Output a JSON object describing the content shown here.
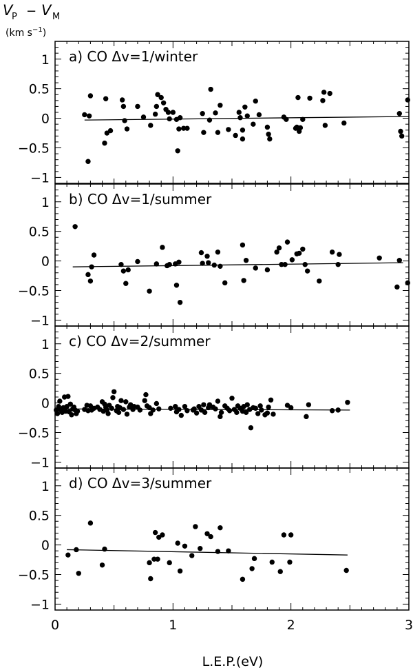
{
  "figure": {
    "ylabel_main": "V",
    "ylabel_sub_p": "P",
    "ylabel_minus": "−",
    "ylabel_sub_m": "M",
    "ylabel_units_pre": "(km s",
    "ylabel_units_exp": "−1",
    "ylabel_units_post": ")",
    "xlabel": "L.E.P.(eV)"
  },
  "chart_data": [
    {
      "type": "scatter",
      "title": "a) CO Δv=1/winter",
      "xlim": [
        0,
        3
      ],
      "ylim": [
        -1.1,
        1.3
      ],
      "xticks": [
        "0",
        "1",
        "2",
        "3"
      ],
      "yticks": [
        "1",
        "0.5",
        "0",
        "−0.5",
        "−1"
      ],
      "fit_line": {
        "x": [
          0.25,
          3.0
        ],
        "y": [
          -0.03,
          0.03
        ]
      },
      "points": [
        [
          0.25,
          0.06
        ],
        [
          0.28,
          -0.73
        ],
        [
          0.29,
          0.04
        ],
        [
          0.3,
          0.38
        ],
        [
          0.42,
          -0.42
        ],
        [
          0.43,
          0.33
        ],
        [
          0.44,
          -0.25
        ],
        [
          0.47,
          -0.21
        ],
        [
          0.57,
          0.31
        ],
        [
          0.58,
          0.2
        ],
        [
          0.59,
          -0.04
        ],
        [
          0.61,
          -0.18
        ],
        [
          0.7,
          0.2
        ],
        [
          0.75,
          0.02
        ],
        [
          0.81,
          -0.12
        ],
        [
          0.85,
          0.07
        ],
        [
          0.86,
          0.2
        ],
        [
          0.87,
          0.4
        ],
        [
          0.9,
          0.35
        ],
        [
          0.92,
          0.26
        ],
        [
          0.94,
          0.15
        ],
        [
          0.96,
          0.1
        ],
        [
          0.97,
          -0.01
        ],
        [
          1.0,
          0.1
        ],
        [
          1.03,
          -0.02
        ],
        [
          1.04,
          -0.55
        ],
        [
          1.05,
          -0.18
        ],
        [
          1.06,
          0.01
        ],
        [
          1.09,
          -0.17
        ],
        [
          1.12,
          -0.17
        ],
        [
          1.25,
          0.08
        ],
        [
          1.26,
          -0.24
        ],
        [
          1.31,
          -0.03
        ],
        [
          1.32,
          0.49
        ],
        [
          1.36,
          0.09
        ],
        [
          1.38,
          -0.24
        ],
        [
          1.4,
          0.22
        ],
        [
          1.47,
          -0.19
        ],
        [
          1.53,
          -0.29
        ],
        [
          1.56,
          0.1
        ],
        [
          1.57,
          0.01
        ],
        [
          1.59,
          -0.2
        ],
        [
          1.59,
          -0.35
        ],
        [
          1.61,
          0.19
        ],
        [
          1.63,
          0.04
        ],
        [
          1.68,
          -0.1
        ],
        [
          1.7,
          0.29
        ],
        [
          1.73,
          0.06
        ],
        [
          1.8,
          -0.15
        ],
        [
          1.81,
          -0.27
        ],
        [
          1.82,
          -0.35
        ],
        [
          1.94,
          0.02
        ],
        [
          1.96,
          -0.02
        ],
        [
          2.04,
          -0.17
        ],
        [
          2.05,
          -0.15
        ],
        [
          2.06,
          0.35
        ],
        [
          2.07,
          -0.22
        ],
        [
          2.08,
          -0.16
        ],
        [
          2.1,
          -0.02
        ],
        [
          2.16,
          0.34
        ],
        [
          2.27,
          0.3
        ],
        [
          2.28,
          0.44
        ],
        [
          2.33,
          0.42
        ],
        [
          2.29,
          -0.12
        ],
        [
          2.45,
          -0.08
        ],
        [
          2.92,
          0.08
        ],
        [
          2.93,
          -0.22
        ],
        [
          2.94,
          -0.3
        ],
        [
          2.99,
          0.31
        ]
      ]
    },
    {
      "type": "scatter",
      "title": "b) CO Δv=1/summer",
      "xlim": [
        0,
        3
      ],
      "ylim": [
        -1.1,
        1.3
      ],
      "xticks": [
        "0",
        "1",
        "2",
        "3"
      ],
      "yticks": [
        "1",
        "0.5",
        "0",
        "−0.5",
        "−1"
      ],
      "fit_line": {
        "x": [
          0.15,
          2.95
        ],
        "y": [
          -0.1,
          -0.03
        ]
      },
      "points": [
        [
          0.17,
          0.58
        ],
        [
          0.28,
          -0.23
        ],
        [
          0.3,
          -0.34
        ],
        [
          0.31,
          -0.1
        ],
        [
          0.33,
          0.1
        ],
        [
          0.56,
          -0.06
        ],
        [
          0.58,
          -0.17
        ],
        [
          0.6,
          -0.38
        ],
        [
          0.62,
          -0.15
        ],
        [
          0.7,
          -0.01
        ],
        [
          0.8,
          -0.51
        ],
        [
          0.86,
          -0.05
        ],
        [
          0.91,
          0.23
        ],
        [
          0.95,
          -0.08
        ],
        [
          0.97,
          -0.06
        ],
        [
          1.02,
          -0.05
        ],
        [
          1.03,
          -0.41
        ],
        [
          1.05,
          -0.02
        ],
        [
          1.06,
          -0.7
        ],
        [
          1.24,
          0.14
        ],
        [
          1.25,
          -0.04
        ],
        [
          1.29,
          0.08
        ],
        [
          1.3,
          -0.03
        ],
        [
          1.35,
          -0.07
        ],
        [
          1.38,
          0.15
        ],
        [
          1.4,
          -0.09
        ],
        [
          1.44,
          -0.37
        ],
        [
          1.59,
          0.27
        ],
        [
          1.6,
          -0.33
        ],
        [
          1.62,
          0.01
        ],
        [
          1.7,
          -0.12
        ],
        [
          1.8,
          -0.15
        ],
        [
          1.88,
          0.15
        ],
        [
          1.9,
          0.22
        ],
        [
          1.92,
          -0.06
        ],
        [
          1.95,
          -0.06
        ],
        [
          1.97,
          0.32
        ],
        [
          2.01,
          0.02
        ],
        [
          2.05,
          0.12
        ],
        [
          2.07,
          0.13
        ],
        [
          2.1,
          0.2
        ],
        [
          2.12,
          -0.06
        ],
        [
          2.14,
          -0.17
        ],
        [
          2.24,
          -0.34
        ],
        [
          2.35,
          0.15
        ],
        [
          2.41,
          0.11
        ],
        [
          2.4,
          -0.06
        ],
        [
          2.75,
          0.05
        ],
        [
          2.9,
          -0.44
        ],
        [
          2.92,
          0.01
        ],
        [
          2.99,
          -0.37
        ]
      ]
    },
    {
      "type": "scatter",
      "title": "c) CO Δv=2/summer",
      "xlim": [
        0,
        3
      ],
      "ylim": [
        -1.1,
        1.3
      ],
      "xticks": [
        "0",
        "1",
        "2",
        "3"
      ],
      "yticks": [
        "1",
        "0.5",
        "0",
        "−0.5",
        "−1"
      ],
      "fit_line": {
        "x": [
          0.0,
          2.5
        ],
        "y": [
          -0.1,
          -0.12
        ]
      },
      "points": [
        [
          0.01,
          -0.12
        ],
        [
          0.02,
          -0.18
        ],
        [
          0.03,
          -0.06
        ],
        [
          0.04,
          0.03
        ],
        [
          0.05,
          -0.12
        ],
        [
          0.06,
          -0.16
        ],
        [
          0.07,
          -0.08
        ],
        [
          0.08,
          0.1
        ],
        [
          0.09,
          -0.14
        ],
        [
          0.1,
          -0.06
        ],
        [
          0.11,
          0.11
        ],
        [
          0.12,
          -0.15
        ],
        [
          0.13,
          -0.02
        ],
        [
          0.14,
          -0.2
        ],
        [
          0.15,
          -0.1
        ],
        [
          0.16,
          -0.07
        ],
        [
          0.17,
          -0.12
        ],
        [
          0.18,
          -0.18
        ],
        [
          0.19,
          -0.14
        ],
        [
          0.25,
          -0.11
        ],
        [
          0.27,
          -0.04
        ],
        [
          0.28,
          -0.13
        ],
        [
          0.3,
          -0.05
        ],
        [
          0.31,
          -0.12
        ],
        [
          0.33,
          -0.09
        ],
        [
          0.36,
          -0.07
        ],
        [
          0.38,
          -0.11
        ],
        [
          0.4,
          0.02
        ],
        [
          0.41,
          -0.14
        ],
        [
          0.42,
          -0.02
        ],
        [
          0.43,
          -0.07
        ],
        [
          0.44,
          -0.12
        ],
        [
          0.45,
          -0.18
        ],
        [
          0.46,
          -0.04
        ],
        [
          0.48,
          -0.09
        ],
        [
          0.49,
          0.09
        ],
        [
          0.5,
          0.19
        ],
        [
          0.52,
          -0.13
        ],
        [
          0.53,
          -0.06
        ],
        [
          0.54,
          -0.16
        ],
        [
          0.55,
          -0.08
        ],
        [
          0.56,
          0.04
        ],
        [
          0.58,
          -0.11
        ],
        [
          0.6,
          0.02
        ],
        [
          0.61,
          -0.19
        ],
        [
          0.63,
          -0.07
        ],
        [
          0.64,
          -0.03
        ],
        [
          0.66,
          -0.11
        ],
        [
          0.67,
          -0.06
        ],
        [
          0.7,
          -0.07
        ],
        [
          0.72,
          -0.12
        ],
        [
          0.76,
          0.04
        ],
        [
          0.77,
          0.14
        ],
        [
          0.78,
          -0.05
        ],
        [
          0.8,
          -0.08
        ],
        [
          0.81,
          -0.18
        ],
        [
          0.83,
          -0.12
        ],
        [
          0.86,
          -0.01
        ],
        [
          0.88,
          -0.1
        ],
        [
          0.98,
          -0.09
        ],
        [
          1.02,
          -0.06
        ],
        [
          1.03,
          -0.15
        ],
        [
          1.05,
          -0.11
        ],
        [
          1.07,
          -0.21
        ],
        [
          1.1,
          -0.06
        ],
        [
          1.12,
          -0.13
        ],
        [
          1.17,
          -0.12
        ],
        [
          1.18,
          -0.1
        ],
        [
          1.2,
          -0.17
        ],
        [
          1.22,
          -0.06
        ],
        [
          1.24,
          -0.12
        ],
        [
          1.26,
          -0.03
        ],
        [
          1.27,
          -0.16
        ],
        [
          1.3,
          -0.08
        ],
        [
          1.31,
          -0.03
        ],
        [
          1.34,
          -0.07
        ],
        [
          1.36,
          -0.1
        ],
        [
          1.38,
          0.03
        ],
        [
          1.4,
          -0.23
        ],
        [
          1.41,
          -0.16
        ],
        [
          1.44,
          -0.05
        ],
        [
          1.46,
          -0.09
        ],
        [
          1.48,
          -0.13
        ],
        [
          1.5,
          0.08
        ],
        [
          1.52,
          -0.11
        ],
        [
          1.54,
          -0.16
        ],
        [
          1.55,
          -0.05
        ],
        [
          1.57,
          -0.09
        ],
        [
          1.59,
          -0.14
        ],
        [
          1.6,
          -0.06
        ],
        [
          1.62,
          -0.16
        ],
        [
          1.63,
          -0.03
        ],
        [
          1.65,
          -0.11
        ],
        [
          1.66,
          -0.42
        ],
        [
          1.68,
          -0.08
        ],
        [
          1.7,
          -0.09
        ],
        [
          1.72,
          -0.18
        ],
        [
          1.74,
          -0.05
        ],
        [
          1.75,
          -0.12
        ],
        [
          1.78,
          -0.2
        ],
        [
          1.8,
          -0.17
        ],
        [
          1.81,
          -0.07
        ],
        [
          1.83,
          0.05
        ],
        [
          1.85,
          -0.19
        ],
        [
          1.97,
          -0.04
        ],
        [
          2.0,
          -0.08
        ],
        [
          2.13,
          -0.23
        ],
        [
          2.15,
          -0.03
        ],
        [
          2.35,
          -0.13
        ],
        [
          2.4,
          -0.12
        ],
        [
          2.48,
          0.01
        ]
      ]
    },
    {
      "type": "scatter",
      "title": "d) CO Δv=3/summer",
      "xlim": [
        0,
        3
      ],
      "ylim": [
        -1.1,
        1.3
      ],
      "xticks": [
        "0",
        "1",
        "2",
        "3"
      ],
      "yticks": [
        "1",
        "0.5",
        "0",
        "−0.5",
        "−1"
      ],
      "fit_line": {
        "x": [
          0.1,
          2.48
        ],
        "y": [
          -0.08,
          -0.17
        ]
      },
      "points": [
        [
          0.11,
          -0.17
        ],
        [
          0.18,
          -0.08
        ],
        [
          0.2,
          -0.48
        ],
        [
          0.3,
          0.37
        ],
        [
          0.4,
          -0.34
        ],
        [
          0.42,
          -0.07
        ],
        [
          0.8,
          -0.3
        ],
        [
          0.81,
          -0.57
        ],
        [
          0.84,
          -0.24
        ],
        [
          0.85,
          0.21
        ],
        [
          0.87,
          -0.24
        ],
        [
          0.88,
          0.13
        ],
        [
          0.91,
          0.17
        ],
        [
          0.97,
          -0.3
        ],
        [
          1.04,
          0.03
        ],
        [
          1.06,
          -0.44
        ],
        [
          1.1,
          -0.02
        ],
        [
          1.16,
          -0.18
        ],
        [
          1.19,
          0.31
        ],
        [
          1.23,
          -0.06
        ],
        [
          1.29,
          0.19
        ],
        [
          1.32,
          0.14
        ],
        [
          1.38,
          -0.11
        ],
        [
          1.4,
          0.29
        ],
        [
          1.47,
          -0.1
        ],
        [
          1.59,
          -0.58
        ],
        [
          1.67,
          -0.4
        ],
        [
          1.69,
          -0.23
        ],
        [
          1.84,
          -0.29
        ],
        [
          1.91,
          -0.45
        ],
        [
          1.94,
          0.17
        ],
        [
          1.99,
          -0.29
        ],
        [
          2.0,
          0.17
        ],
        [
          2.47,
          -0.43
        ]
      ]
    }
  ]
}
